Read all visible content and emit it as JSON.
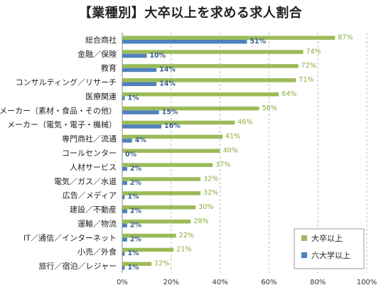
{
  "chart_data": {
    "type": "bar",
    "orientation": "horizontal",
    "title": "【業種別】大卒以上を求める求人割合",
    "categories": [
      "総合商社",
      "金融／保険",
      "教育",
      "コンサルティング／リサーチ",
      "医療関連",
      "メーカー（素材・食品・その他）",
      "メーカー（電気・電子・機械）",
      "専門商社／流通",
      "コールセンター",
      "人材サービス",
      "電気／ガス／水道",
      "広告／メディア",
      "建設／不動産",
      "運輸／物流",
      "IT／通信／インターネット",
      "小売／外食",
      "旅行／宿泊／レジャー"
    ],
    "series": [
      {
        "name": "大卒以上",
        "color": "#9BBB59",
        "values": [
          87,
          74,
          72,
          71,
          64,
          56,
          46,
          41,
          40,
          37,
          32,
          32,
          30,
          28,
          22,
          21,
          12
        ]
      },
      {
        "name": "六大学以上",
        "color": "#4F81BD",
        "values": [
          51,
          10,
          14,
          14,
          1,
          15,
          16,
          4,
          0,
          2,
          2,
          1,
          2,
          2,
          2,
          1,
          1
        ]
      }
    ],
    "value_labels": [
      [
        "87%",
        "74%",
        "72%",
        "71%",
        "64%",
        "56%",
        "46%",
        "41%",
        "40%",
        "37%",
        "32%",
        "32%",
        "30%",
        "28%",
        "22%",
        "21%",
        "12%"
      ],
      [
        "51%",
        "10%",
        "14%",
        "14%",
        "1%",
        "15%",
        "16%",
        "4%",
        "0%",
        "2%",
        "2%",
        "1%",
        "2%",
        "2%",
        "2%",
        "1%",
        "1%"
      ]
    ],
    "x_ticks": [
      "0%",
      "20%",
      "40%",
      "60%",
      "80%",
      "100%"
    ],
    "xlim": [
      0,
      100
    ],
    "grid": "vertical-dashed",
    "legend_position": "bottom-right"
  }
}
